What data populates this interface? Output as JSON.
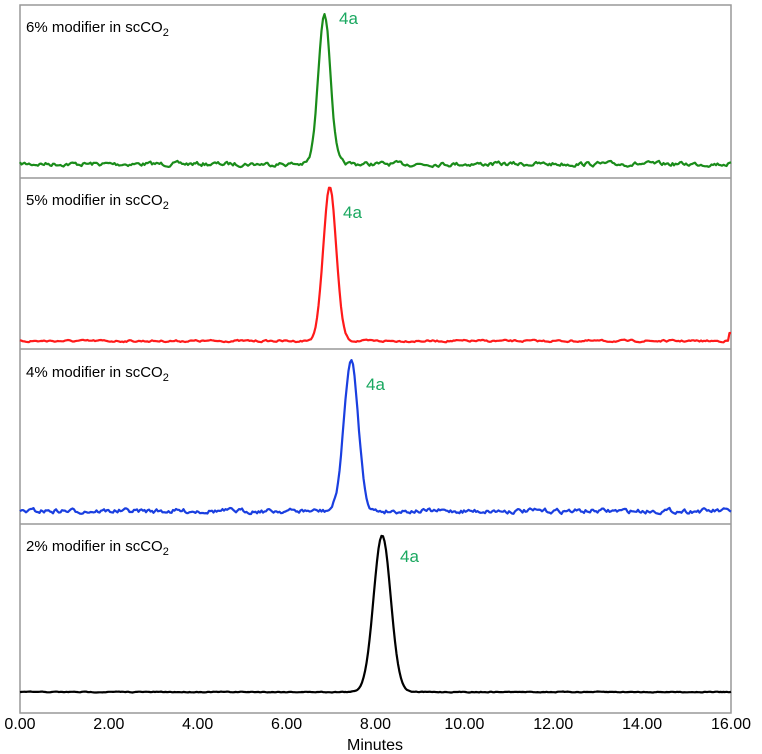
{
  "chart_data": {
    "type": "line",
    "title": "",
    "xlabel": "Minutes",
    "ylabel": "",
    "xlim": [
      0,
      16
    ],
    "x_ticks": [
      "0.00",
      "2.00",
      "4.00",
      "6.00",
      "8.00",
      "10.00",
      "12.00",
      "14.00",
      "16.00"
    ],
    "grid": false,
    "layout": "4 vertically stacked panels sharing x-axis",
    "series": [
      {
        "name": "6% modifier in scCO2",
        "color": "#1a8c1a",
        "peak_label": "4a",
        "peak_time_min": 6.85,
        "peak_width_min": 0.35,
        "baseline_noise": "moderate"
      },
      {
        "name": "5% modifier in scCO2",
        "color": "#ff1a1a",
        "peak_label": "4a",
        "peak_time_min": 6.97,
        "peak_width_min": 0.38,
        "baseline_noise": "low"
      },
      {
        "name": "4% modifier in scCO2",
        "color": "#1a3fe0",
        "peak_label": "4a",
        "peak_time_min": 7.45,
        "peak_width_min": 0.42,
        "baseline_noise": "moderate"
      },
      {
        "name": "2% modifier in scCO2",
        "color": "#000000",
        "peak_label": "4a",
        "peak_time_min": 8.15,
        "peak_width_min": 0.5,
        "baseline_noise": "very low"
      }
    ]
  },
  "panels": [
    {
      "label_main": "6% modifier in scCO",
      "label_sub": "2",
      "peak": "4a"
    },
    {
      "label_main": "5% modifier in scCO",
      "label_sub": "2",
      "peak": "4a"
    },
    {
      "label_main": "4% modifier in scCO",
      "label_sub": "2",
      "peak": "4a"
    },
    {
      "label_main": "2% modifier in scCO",
      "label_sub": "2",
      "peak": "4a"
    }
  ],
  "x_axis": {
    "title": "Minutes",
    "ticks": [
      "0.00",
      "2.00",
      "4.00",
      "6.00",
      "8.00",
      "10.00",
      "12.00",
      "14.00",
      "16.00"
    ]
  }
}
